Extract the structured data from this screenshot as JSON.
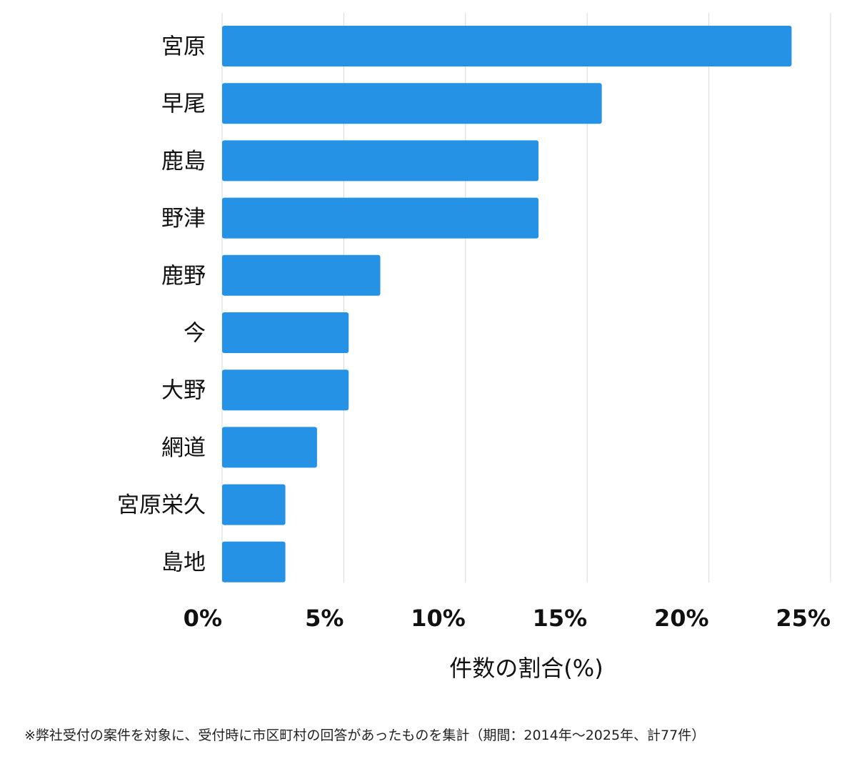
{
  "chart_data": {
    "type": "bar",
    "orientation": "horizontal",
    "categories": [
      "宮原",
      "早尾",
      "鹿島",
      "野津",
      "鹿野",
      "今",
      "大野",
      "網道",
      "宮原栄久",
      "島地"
    ],
    "values": [
      23.4,
      15.6,
      13.0,
      13.0,
      6.5,
      5.2,
      5.2,
      3.9,
      2.6,
      2.6
    ],
    "xlim": [
      0,
      25
    ],
    "x_ticks": [
      0,
      5,
      10,
      15,
      20,
      25
    ],
    "x_tick_labels": [
      "0%",
      "5%",
      "10%",
      "15%",
      "20%",
      "25%"
    ],
    "xlabel": "件数の割合(%)",
    "ylabel": "",
    "title": "",
    "bar_color": "#2592e6",
    "grid": true,
    "legend": "none"
  },
  "footnote": "※弊社受付の案件を対象に、受付時に市区町村の回答があったものを集計（期間：2014年〜2025年、計77件）"
}
